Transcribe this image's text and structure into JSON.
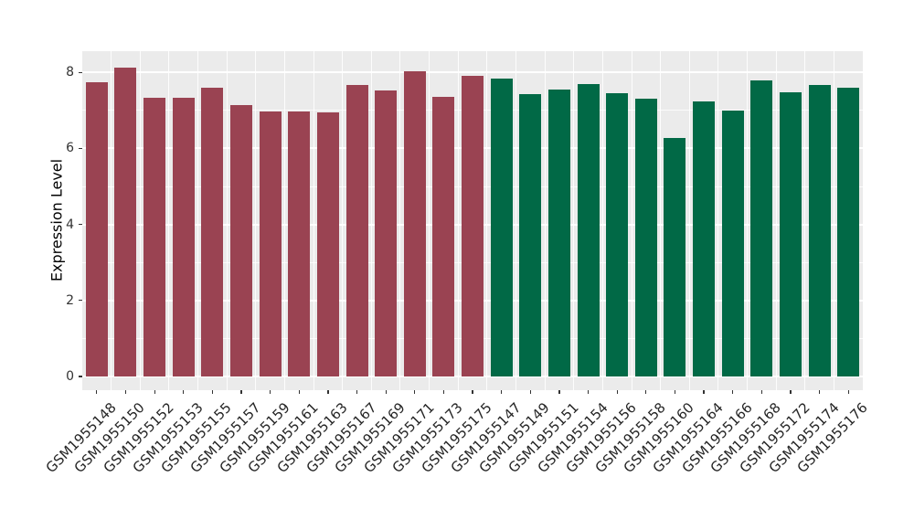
{
  "chart_data": {
    "type": "bar",
    "title": "",
    "xlabel": "",
    "ylabel": "Expression Level",
    "ylim": [
      0,
      8.5
    ],
    "yticks": [
      0,
      2,
      4,
      6,
      8
    ],
    "grid": "on",
    "legend": "none",
    "panel_background": "#EBEBEB",
    "gridline_color": "#FFFFFF",
    "tick_color": "#333333",
    "categories": [
      "GSM1955148",
      "GSM1955150",
      "GSM1955152",
      "GSM1955153",
      "GSM1955155",
      "GSM1955157",
      "GSM1955159",
      "GSM1955161",
      "GSM1955163",
      "GSM1955167",
      "GSM1955169",
      "GSM1955171",
      "GSM1955173",
      "GSM1955175",
      "GSM1955147",
      "GSM1955149",
      "GSM1955151",
      "GSM1955154",
      "GSM1955156",
      "GSM1955158",
      "GSM1955160",
      "GSM1955164",
      "GSM1955166",
      "GSM1955168",
      "GSM1955172",
      "GSM1955174",
      "GSM1955176"
    ],
    "values": [
      7.74,
      8.13,
      7.33,
      7.33,
      7.6,
      7.15,
      6.97,
      6.97,
      6.94,
      7.66,
      7.52,
      8.03,
      7.36,
      7.91,
      7.84,
      7.44,
      7.56,
      7.69,
      7.46,
      7.31,
      6.28,
      7.24,
      7.0,
      7.78,
      7.48,
      7.68,
      7.6
    ],
    "groups": [
      "maroon",
      "maroon",
      "maroon",
      "maroon",
      "maroon",
      "maroon",
      "maroon",
      "maroon",
      "maroon",
      "maroon",
      "maroon",
      "maroon",
      "maroon",
      "maroon",
      "green",
      "green",
      "green",
      "green",
      "green",
      "green",
      "green",
      "green",
      "green",
      "green",
      "green",
      "green",
      "green"
    ],
    "group_colors": {
      "maroon": "#9A4352",
      "green": "#016946"
    }
  }
}
